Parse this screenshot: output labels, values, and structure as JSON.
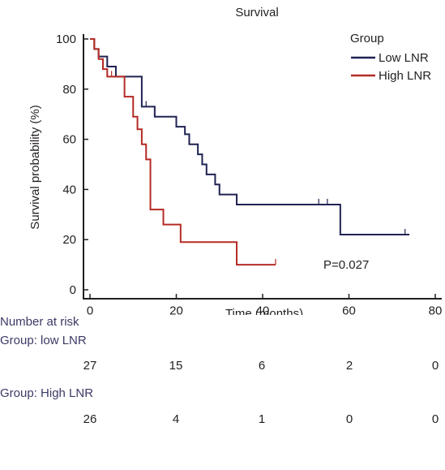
{
  "chart_data": {
    "type": "line",
    "step": true,
    "title": "Survival",
    "xlabel": "Time (months)",
    "ylabel": "Survival probability (%)",
    "xlim": [
      0,
      80
    ],
    "ylim": [
      0,
      100
    ],
    "xticks": [
      0,
      20,
      40,
      60,
      80
    ],
    "yticks": [
      0,
      20,
      40,
      60,
      80,
      100
    ],
    "legend": {
      "title": "Group",
      "placement": "top-right"
    },
    "annotation": "P=0.027",
    "series": [
      {
        "name": "Low LNR",
        "color": "#1f2352",
        "x": [
          0,
          1,
          2,
          4,
          6,
          12,
          13,
          15,
          17,
          20,
          22,
          23,
          25,
          26,
          27,
          29,
          30,
          34,
          58,
          74
        ],
        "y": [
          100,
          96,
          93,
          89,
          85,
          73,
          73,
          69,
          69,
          65,
          62,
          58,
          54,
          50,
          46,
          42,
          38,
          34,
          22,
          22
        ],
        "censor_x": [
          12,
          13,
          34,
          53,
          55,
          73
        ]
      },
      {
        "name": "High LNR",
        "color": "#b52b25",
        "x": [
          0,
          1,
          2,
          3,
          4,
          8,
          10,
          11,
          12,
          13,
          14,
          17,
          21,
          34,
          43
        ],
        "y": [
          100,
          96,
          92,
          88,
          85,
          77,
          69,
          64,
          58,
          52,
          32,
          26,
          19,
          10,
          10
        ],
        "censor_x": [
          3,
          5,
          21,
          43
        ]
      }
    ]
  },
  "risk_table": {
    "title": "Number at risk",
    "groups": [
      {
        "label": "Group: low LNR",
        "values": [
          "27",
          "15",
          "6",
          "2",
          "0"
        ]
      },
      {
        "label": "Group: High LNR",
        "values": [
          "26",
          "4",
          "1",
          "0",
          "0"
        ]
      }
    ]
  }
}
